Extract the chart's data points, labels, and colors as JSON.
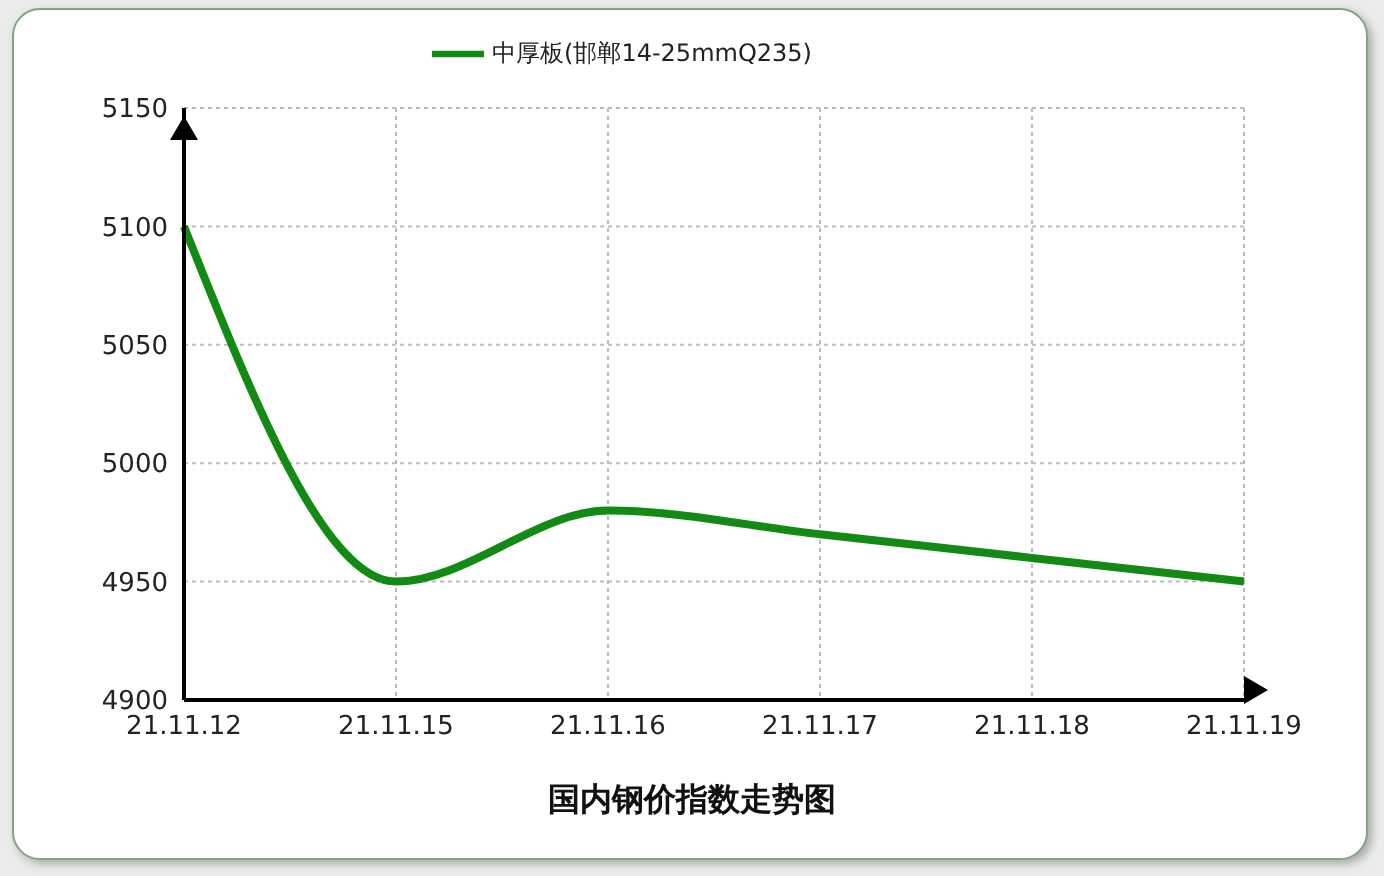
{
  "chart_data": {
    "type": "line",
    "title": "国内钢价指数走势图",
    "categories": [
      "21.11.12",
      "21.11.15",
      "21.11.16",
      "21.11.17",
      "21.11.18",
      "21.11.19"
    ],
    "series": [
      {
        "name": "中厚板(邯郸14-25mmQ235)",
        "color": "#138a13",
        "values": [
          5100,
          4950,
          4980,
          4970,
          4960,
          4950
        ]
      }
    ],
    "ylim": [
      4900,
      5150
    ],
    "yticks": [
      4900,
      4950,
      5000,
      5050,
      5100,
      5150
    ],
    "grid": true,
    "legend": "top",
    "marker": "none",
    "line_style": "solid"
  }
}
